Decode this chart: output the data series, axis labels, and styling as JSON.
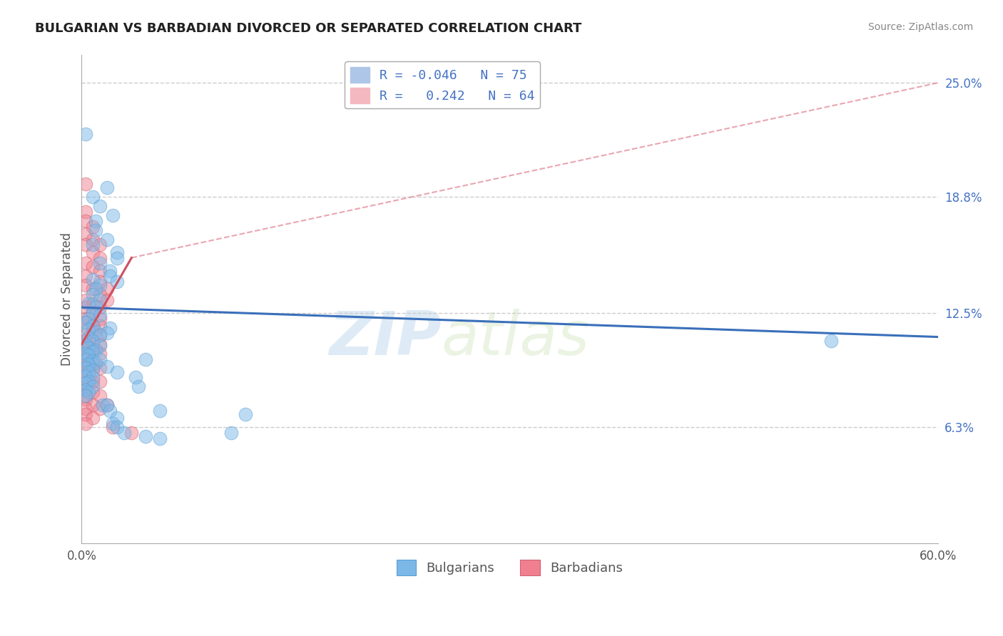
{
  "title": "BULGARIAN VS BARBADIAN DIVORCED OR SEPARATED CORRELATION CHART",
  "source": "Source: ZipAtlas.com",
  "ylabel": "Divorced or Separated",
  "xlabel": "",
  "xlim": [
    0.0,
    0.6
  ],
  "ylim": [
    0.0,
    0.265
  ],
  "xtick_labels": [
    "0.0%",
    "60.0%"
  ],
  "ytick_labels": [
    "6.3%",
    "12.5%",
    "18.8%",
    "25.0%"
  ],
  "ytick_vals": [
    0.063,
    0.125,
    0.188,
    0.25
  ],
  "watermark_zip": "ZIP",
  "watermark_atlas": "atlas",
  "bulgarians_color": "#7bb8e8",
  "barbadians_color": "#f08090",
  "bulgarians_edge": "#5a9fd4",
  "barbadians_edge": "#d06070",
  "trend_bulgarian_color": "#3a6fba",
  "trend_barbadian_color": "#d05060",
  "trend_barbadian_dashed_color": "#e08090",
  "bul_trend_x0": 0.0,
  "bul_trend_x1": 0.6,
  "bul_trend_y0": 0.128,
  "bul_trend_y1": 0.112,
  "bar_trend_solid_x0": 0.0,
  "bar_trend_solid_x1": 0.035,
  "bar_trend_solid_y0": 0.108,
  "bar_trend_solid_y1": 0.155,
  "bar_trend_dashed_x0": 0.035,
  "bar_trend_dashed_x1": 0.6,
  "bar_trend_dashed_y0": 0.155,
  "bar_trend_dashed_y1": 0.25,
  "bulgarians": [
    [
      0.003,
      0.222
    ],
    [
      0.018,
      0.193
    ],
    [
      0.008,
      0.188
    ],
    [
      0.013,
      0.183
    ],
    [
      0.022,
      0.178
    ],
    [
      0.01,
      0.175
    ],
    [
      0.01,
      0.17
    ],
    [
      0.018,
      0.165
    ],
    [
      0.008,
      0.162
    ],
    [
      0.025,
      0.158
    ],
    [
      0.025,
      0.155
    ],
    [
      0.013,
      0.152
    ],
    [
      0.02,
      0.148
    ],
    [
      0.02,
      0.145
    ],
    [
      0.008,
      0.143
    ],
    [
      0.025,
      0.142
    ],
    [
      0.013,
      0.14
    ],
    [
      0.01,
      0.138
    ],
    [
      0.008,
      0.135
    ],
    [
      0.013,
      0.132
    ],
    [
      0.005,
      0.13
    ],
    [
      0.01,
      0.128
    ],
    [
      0.008,
      0.125
    ],
    [
      0.013,
      0.124
    ],
    [
      0.005,
      0.122
    ],
    [
      0.003,
      0.12
    ],
    [
      0.008,
      0.118
    ],
    [
      0.02,
      0.117
    ],
    [
      0.005,
      0.116
    ],
    [
      0.01,
      0.115
    ],
    [
      0.018,
      0.114
    ],
    [
      0.013,
      0.113
    ],
    [
      0.005,
      0.112
    ],
    [
      0.008,
      0.11
    ],
    [
      0.003,
      0.108
    ],
    [
      0.013,
      0.107
    ],
    [
      0.005,
      0.106
    ],
    [
      0.01,
      0.105
    ],
    [
      0.008,
      0.104
    ],
    [
      0.003,
      0.103
    ],
    [
      0.005,
      0.102
    ],
    [
      0.003,
      0.1
    ],
    [
      0.008,
      0.099
    ],
    [
      0.01,
      0.098
    ],
    [
      0.005,
      0.097
    ],
    [
      0.003,
      0.095
    ],
    [
      0.008,
      0.094
    ],
    [
      0.005,
      0.093
    ],
    [
      0.003,
      0.091
    ],
    [
      0.008,
      0.09
    ],
    [
      0.005,
      0.088
    ],
    [
      0.003,
      0.087
    ],
    [
      0.008,
      0.085
    ],
    [
      0.013,
      0.1
    ],
    [
      0.003,
      0.083
    ],
    [
      0.005,
      0.082
    ],
    [
      0.003,
      0.08
    ],
    [
      0.018,
      0.096
    ],
    [
      0.045,
      0.1
    ],
    [
      0.025,
      0.093
    ],
    [
      0.015,
      0.075
    ],
    [
      0.018,
      0.075
    ],
    [
      0.02,
      0.072
    ],
    [
      0.025,
      0.068
    ],
    [
      0.022,
      0.065
    ],
    [
      0.025,
      0.063
    ],
    [
      0.038,
      0.09
    ],
    [
      0.04,
      0.085
    ],
    [
      0.055,
      0.072
    ],
    [
      0.115,
      0.07
    ],
    [
      0.525,
      0.11
    ],
    [
      0.03,
      0.06
    ],
    [
      0.045,
      0.058
    ],
    [
      0.055,
      0.057
    ],
    [
      0.105,
      0.06
    ]
  ],
  "barbadians": [
    [
      0.003,
      0.195
    ],
    [
      0.003,
      0.18
    ],
    [
      0.003,
      0.175
    ],
    [
      0.008,
      0.172
    ],
    [
      0.003,
      0.168
    ],
    [
      0.008,
      0.165
    ],
    [
      0.003,
      0.162
    ],
    [
      0.013,
      0.162
    ],
    [
      0.008,
      0.158
    ],
    [
      0.013,
      0.155
    ],
    [
      0.003,
      0.152
    ],
    [
      0.008,
      0.15
    ],
    [
      0.013,
      0.148
    ],
    [
      0.003,
      0.145
    ],
    [
      0.013,
      0.142
    ],
    [
      0.003,
      0.14
    ],
    [
      0.008,
      0.138
    ],
    [
      0.018,
      0.138
    ],
    [
      0.013,
      0.135
    ],
    [
      0.003,
      0.132
    ],
    [
      0.008,
      0.13
    ],
    [
      0.003,
      0.128
    ],
    [
      0.013,
      0.128
    ],
    [
      0.008,
      0.125
    ],
    [
      0.003,
      0.122
    ],
    [
      0.013,
      0.122
    ],
    [
      0.003,
      0.12
    ],
    [
      0.008,
      0.118
    ],
    [
      0.013,
      0.118
    ],
    [
      0.018,
      0.132
    ],
    [
      0.008,
      0.115
    ],
    [
      0.003,
      0.113
    ],
    [
      0.013,
      0.113
    ],
    [
      0.003,
      0.11
    ],
    [
      0.008,
      0.108
    ],
    [
      0.013,
      0.108
    ],
    [
      0.003,
      0.107
    ],
    [
      0.008,
      0.105
    ],
    [
      0.003,
      0.103
    ],
    [
      0.013,
      0.103
    ],
    [
      0.003,
      0.1
    ],
    [
      0.008,
      0.098
    ],
    [
      0.003,
      0.097
    ],
    [
      0.008,
      0.095
    ],
    [
      0.003,
      0.093
    ],
    [
      0.013,
      0.095
    ],
    [
      0.003,
      0.09
    ],
    [
      0.008,
      0.088
    ],
    [
      0.003,
      0.085
    ],
    [
      0.013,
      0.088
    ],
    [
      0.003,
      0.083
    ],
    [
      0.008,
      0.082
    ],
    [
      0.003,
      0.08
    ],
    [
      0.013,
      0.08
    ],
    [
      0.003,
      0.078
    ],
    [
      0.008,
      0.075
    ],
    [
      0.003,
      0.073
    ],
    [
      0.013,
      0.073
    ],
    [
      0.003,
      0.07
    ],
    [
      0.008,
      0.068
    ],
    [
      0.003,
      0.065
    ],
    [
      0.018,
      0.075
    ],
    [
      0.022,
      0.063
    ],
    [
      0.035,
      0.06
    ]
  ]
}
